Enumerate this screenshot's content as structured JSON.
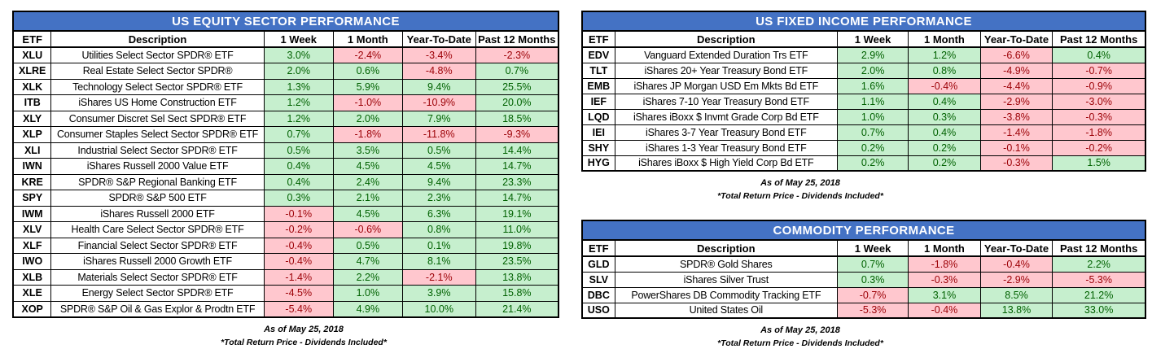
{
  "colors": {
    "header_bg": "#4472C4",
    "header_text": "#FFFFFF",
    "positive_bg": "#C6EFCE",
    "positive_text": "#006100",
    "negative_bg": "#FFC7CE",
    "negative_text": "#9C0006",
    "border": "#000000"
  },
  "columns": [
    "ETF",
    "Description",
    "1 Week",
    "1 Month",
    "Year-To-Date",
    "Past 12 Months"
  ],
  "footnote": {
    "as_of": "As of May 25, 2018",
    "note": "*Total Return Price - Dividends Included*"
  },
  "tables": [
    {
      "title": "US EQUITY SECTOR PERFORMANCE",
      "rows": [
        {
          "etf": "XLU",
          "description": "Utilities Select Sector SPDR® ETF",
          "values": [
            "3.0%",
            "-2.4%",
            "-3.4%",
            "-2.3%"
          ]
        },
        {
          "etf": "XLRE",
          "description": "Real Estate Select Sector SPDR®",
          "values": [
            "2.0%",
            "0.6%",
            "-4.8%",
            "0.7%"
          ]
        },
        {
          "etf": "XLK",
          "description": "Technology Select Sector SPDR® ETF",
          "values": [
            "1.3%",
            "5.9%",
            "9.4%",
            "25.5%"
          ]
        },
        {
          "etf": "ITB",
          "description": "iShares US Home Construction ETF",
          "values": [
            "1.2%",
            "-1.0%",
            "-10.9%",
            "20.0%"
          ]
        },
        {
          "etf": "XLY",
          "description": "Consumer Discret Sel Sect SPDR® ETF",
          "values": [
            "1.2%",
            "2.0%",
            "7.9%",
            "18.5%"
          ]
        },
        {
          "etf": "XLP",
          "description": "Consumer Staples Select Sector SPDR® ETF",
          "values": [
            "0.7%",
            "-1.8%",
            "-11.8%",
            "-9.3%"
          ]
        },
        {
          "etf": "XLI",
          "description": "Industrial Select Sector SPDR® ETF",
          "values": [
            "0.5%",
            "3.5%",
            "0.5%",
            "14.4%"
          ]
        },
        {
          "etf": "IWN",
          "description": "iShares Russell 2000 Value ETF",
          "values": [
            "0.4%",
            "4.5%",
            "4.5%",
            "14.7%"
          ]
        },
        {
          "etf": "KRE",
          "description": "SPDR® S&P Regional Banking ETF",
          "values": [
            "0.4%",
            "2.4%",
            "9.4%",
            "23.3%"
          ]
        },
        {
          "etf": "SPY",
          "description": "SPDR® S&P 500 ETF",
          "values": [
            "0.3%",
            "2.1%",
            "2.3%",
            "14.7%"
          ]
        },
        {
          "etf": "IWM",
          "description": "iShares Russell 2000 ETF",
          "values": [
            "-0.1%",
            "4.5%",
            "6.3%",
            "19.1%"
          ]
        },
        {
          "etf": "XLV",
          "description": "Health Care Select Sector SPDR® ETF",
          "values": [
            "-0.2%",
            "-0.6%",
            "0.8%",
            "11.0%"
          ]
        },
        {
          "etf": "XLF",
          "description": "Financial Select Sector SPDR® ETF",
          "values": [
            "-0.4%",
            "0.5%",
            "0.1%",
            "19.8%"
          ]
        },
        {
          "etf": "IWO",
          "description": "iShares Russell 2000 Growth ETF",
          "values": [
            "-0.4%",
            "4.7%",
            "8.1%",
            "23.5%"
          ]
        },
        {
          "etf": "XLB",
          "description": "Materials Select Sector SPDR® ETF",
          "values": [
            "-1.4%",
            "2.2%",
            "-2.1%",
            "13.8%"
          ]
        },
        {
          "etf": "XLE",
          "description": "Energy Select Sector SPDR® ETF",
          "values": [
            "-4.5%",
            "1.0%",
            "3.9%",
            "15.8%"
          ]
        },
        {
          "etf": "XOP",
          "description": "SPDR® S&P Oil & Gas Explor & Prodtn ETF",
          "values": [
            "-5.4%",
            "4.9%",
            "10.0%",
            "21.4%"
          ]
        }
      ]
    },
    {
      "title": "US FIXED INCOME PERFORMANCE",
      "rows": [
        {
          "etf": "EDV",
          "description": "Vanguard Extended Duration Trs ETF",
          "values": [
            "2.9%",
            "1.2%",
            "-6.6%",
            "0.4%"
          ]
        },
        {
          "etf": "TLT",
          "description": "iShares 20+ Year Treasury Bond ETF",
          "values": [
            "2.0%",
            "0.8%",
            "-4.9%",
            "-0.7%"
          ]
        },
        {
          "etf": "EMB",
          "description": "iShares JP Morgan USD Em Mkts Bd ETF",
          "values": [
            "1.6%",
            "-0.4%",
            "-4.4%",
            "-0.9%"
          ]
        },
        {
          "etf": "IEF",
          "description": "iShares 7-10 Year Treasury Bond ETF",
          "values": [
            "1.1%",
            "0.4%",
            "-2.9%",
            "-3.0%"
          ]
        },
        {
          "etf": "LQD",
          "description": "iShares iBoxx $ Invmt Grade Corp Bd ETF",
          "values": [
            "1.0%",
            "0.3%",
            "-3.8%",
            "-0.3%"
          ]
        },
        {
          "etf": "IEI",
          "description": "iShares 3-7 Year Treasury Bond ETF",
          "values": [
            "0.7%",
            "0.4%",
            "-1.4%",
            "-1.8%"
          ]
        },
        {
          "etf": "SHY",
          "description": "iShares 1-3 Year Treasury Bond ETF",
          "values": [
            "0.2%",
            "0.2%",
            "-0.1%",
            "-0.2%"
          ]
        },
        {
          "etf": "HYG",
          "description": "iShares iBoxx $ High Yield Corp Bd ETF",
          "values": [
            "0.2%",
            "0.2%",
            "-0.3%",
            "1.5%"
          ]
        }
      ]
    },
    {
      "title": "COMMODITY PERFORMANCE",
      "rows": [
        {
          "etf": "GLD",
          "description": "SPDR® Gold Shares",
          "values": [
            "0.7%",
            "-1.8%",
            "-0.4%",
            "2.2%"
          ]
        },
        {
          "etf": "SLV",
          "description": "iShares Silver Trust",
          "values": [
            "0.3%",
            "-0.3%",
            "-2.9%",
            "-5.3%"
          ]
        },
        {
          "etf": "DBC",
          "description": "PowerShares DB Commodity Tracking ETF",
          "values": [
            "-0.7%",
            "3.1%",
            "8.5%",
            "21.2%"
          ]
        },
        {
          "etf": "USO",
          "description": "United States Oil",
          "values": [
            "-5.3%",
            "-0.4%",
            "13.8%",
            "33.0%"
          ]
        }
      ]
    }
  ]
}
